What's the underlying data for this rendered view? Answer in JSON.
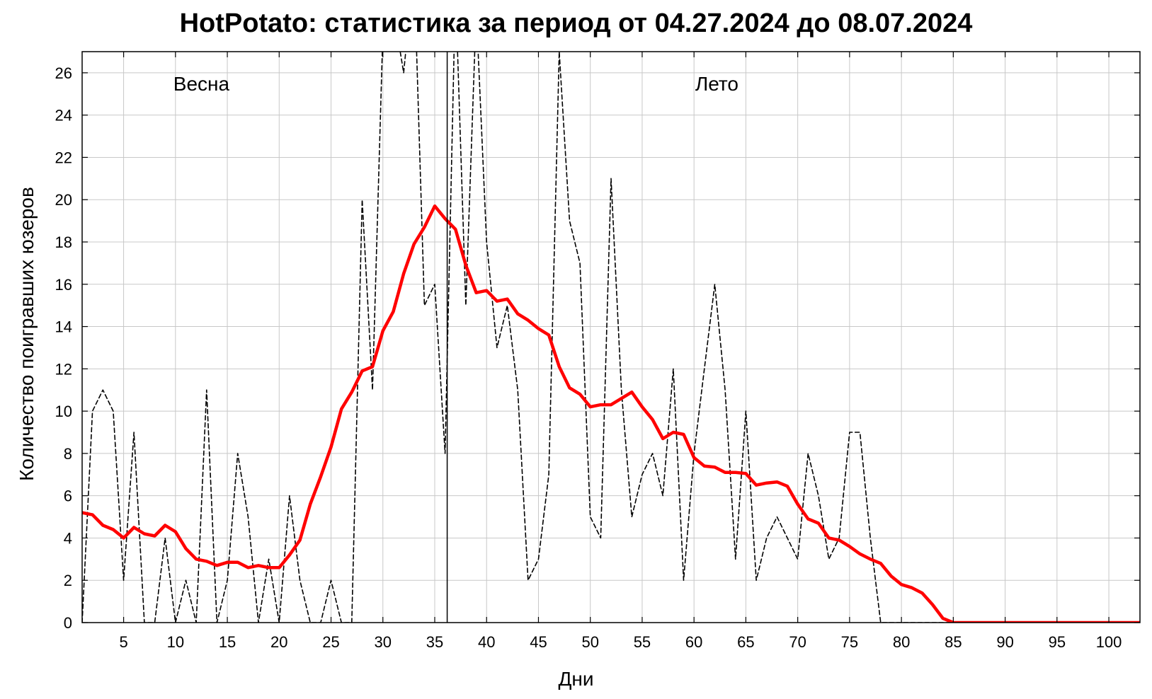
{
  "chart_data": {
    "type": "line",
    "title": "HotPotato: статистика за период от 04.27.2024 до 08.07.2024",
    "xlabel": "Дни",
    "ylabel": "Количество поигравших юзеров",
    "xlim": [
      1,
      103
    ],
    "ylim": [
      0,
      27
    ],
    "x_ticks": [
      5,
      10,
      15,
      20,
      25,
      30,
      35,
      40,
      45,
      50,
      55,
      60,
      65,
      70,
      75,
      80,
      85,
      90,
      95,
      100
    ],
    "y_ticks": [
      0,
      2,
      4,
      6,
      8,
      10,
      12,
      14,
      16,
      18,
      20,
      22,
      24,
      26
    ],
    "grid": true,
    "separator_x": 36.2,
    "annotations": [
      {
        "text": "Весна",
        "x": 12.5,
        "y": 25.5
      },
      {
        "text": "Лето",
        "x": 62.2,
        "y": 25.5
      }
    ],
    "colors": {
      "daily": "#000000",
      "smoothed": "#ff0000",
      "grid": "#c8c8c8"
    },
    "series": [
      {
        "style": "dashed",
        "x": [
          1,
          2,
          3,
          4,
          5,
          6,
          7,
          8,
          9,
          10,
          11,
          12,
          13,
          14,
          15,
          16,
          17,
          18,
          19,
          20,
          21,
          22,
          23,
          24,
          25,
          26,
          27,
          28,
          29,
          30,
          31,
          32,
          33,
          34,
          35,
          36,
          37,
          38,
          39,
          40,
          41,
          42,
          43,
          44,
          45,
          46,
          47,
          48,
          49,
          50,
          51,
          52,
          53,
          54,
          55,
          56,
          57,
          58,
          59,
          60,
          61,
          62,
          63,
          64,
          65,
          66,
          67,
          68,
          69,
          70,
          71,
          72,
          73,
          74,
          75,
          76,
          77,
          78,
          79,
          80,
          81,
          82,
          83,
          84,
          85,
          86,
          87,
          88,
          89,
          90,
          91,
          92,
          93,
          94,
          95,
          96,
          97,
          98,
          99,
          100,
          101,
          102,
          103
        ],
        "values": [
          0,
          10,
          11,
          10,
          2,
          9,
          0,
          0,
          4,
          0,
          2,
          0,
          11,
          0,
          2,
          8,
          5,
          0,
          3,
          0,
          6,
          2,
          0,
          0,
          2,
          0,
          0,
          20,
          11,
          28,
          29,
          26,
          31,
          15,
          16,
          8,
          30,
          15,
          29,
          18,
          13,
          15,
          11,
          2,
          3,
          7,
          27,
          19,
          17,
          5,
          4,
          21,
          11,
          5,
          7,
          8,
          6,
          12,
          2,
          8,
          12,
          16,
          11,
          3,
          10,
          2,
          4,
          5,
          4,
          3,
          8,
          6,
          3,
          4,
          9,
          9,
          4,
          0,
          0,
          0,
          0,
          0,
          0,
          0,
          0,
          0,
          0,
          0,
          0,
          0,
          0,
          0,
          0,
          0,
          0,
          0,
          0,
          0,
          0,
          0,
          0,
          0,
          0
        ]
      },
      {
        "style": "solid",
        "x": [
          1,
          2,
          3,
          4,
          5,
          6,
          7,
          8,
          9,
          10,
          11,
          12,
          13,
          14,
          15,
          16,
          17,
          18,
          19,
          20,
          21,
          22,
          23,
          24,
          25,
          26,
          27,
          28,
          29,
          30,
          31,
          32,
          33,
          34,
          35,
          36,
          37,
          38,
          39,
          40,
          41,
          42,
          43,
          44,
          45,
          46,
          47,
          48,
          49,
          50,
          51,
          52,
          53,
          54,
          55,
          56,
          57,
          58,
          59,
          60,
          61,
          62,
          63,
          64,
          65,
          66,
          67,
          68,
          69,
          70,
          71,
          72,
          73,
          74,
          75,
          76,
          77,
          78,
          79,
          80,
          81,
          82,
          83,
          84,
          85,
          86,
          87,
          88,
          89,
          90,
          91,
          92,
          93,
          94,
          95,
          96,
          97,
          98,
          99,
          100,
          101,
          102,
          103
        ],
        "values": [
          5.2,
          5.1,
          4.6,
          4.4,
          4.0,
          4.5,
          4.2,
          4.1,
          4.6,
          4.3,
          3.5,
          3.0,
          2.9,
          2.7,
          2.85,
          2.85,
          2.6,
          2.7,
          2.6,
          2.6,
          3.2,
          3.9,
          5.6,
          6.9,
          8.3,
          10.1,
          10.9,
          11.9,
          12.1,
          13.8,
          14.7,
          16.5,
          17.9,
          18.7,
          19.7,
          19.1,
          18.6,
          16.9,
          15.6,
          15.7,
          15.2,
          15.3,
          14.6,
          14.3,
          13.9,
          13.6,
          12.1,
          11.1,
          10.8,
          10.2,
          10.3,
          10.3,
          10.6,
          10.9,
          10.2,
          9.6,
          8.7,
          9.0,
          8.9,
          7.8,
          7.4,
          7.35,
          7.1,
          7.1,
          7.05,
          6.5,
          6.6,
          6.65,
          6.45,
          5.6,
          4.9,
          4.7,
          4.0,
          3.9,
          3.6,
          3.25,
          3.0,
          2.8,
          2.2,
          1.8,
          1.65,
          1.4,
          0.85,
          0.2,
          0,
          0,
          0,
          0,
          0,
          0,
          0,
          0,
          0,
          0,
          0,
          0,
          0,
          0,
          0,
          0,
          0,
          0,
          0
        ]
      }
    ]
  }
}
